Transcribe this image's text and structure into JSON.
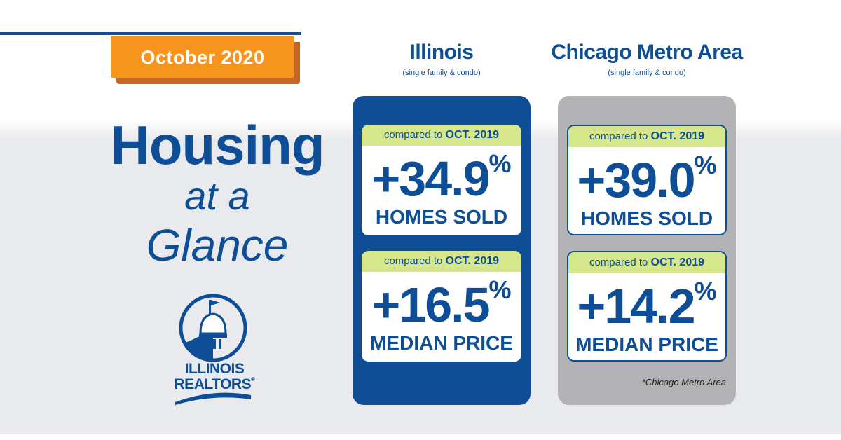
{
  "period": "October 2020",
  "headline": {
    "line1": "Housing",
    "line2": "at a",
    "line3": "Glance"
  },
  "logo": {
    "icon": "capitol-dome-icon",
    "line1": "ILLINOIS",
    "line2": "REALTORS",
    "mark": "®"
  },
  "colors": {
    "blue": "#0e4e96",
    "orange": "#f7941d",
    "green_band": "#d6e68a",
    "grey_panel": "#b3b3b5"
  },
  "regions": [
    {
      "name": "Illinois",
      "sub": "(single family & condo)",
      "stats": [
        {
          "compare_prefix": "compared to",
          "compare_period": "OCT. 2019",
          "value": "+34.9",
          "unit": "%",
          "label": "HOMES SOLD"
        },
        {
          "compare_prefix": "compared to",
          "compare_period": "OCT. 2019",
          "value": "+16.5",
          "unit": "%",
          "label": "MEDIAN PRICE"
        }
      ]
    },
    {
      "name": "Chicago Metro Area",
      "sub": "(single family & condo)",
      "stats": [
        {
          "compare_prefix": "compared to",
          "compare_period": "OCT. 2019",
          "value": "+39.0",
          "unit": "%",
          "label": "HOMES SOLD"
        },
        {
          "compare_prefix": "compared to",
          "compare_period": "OCT. 2019",
          "value": "+14.2",
          "unit": "%",
          "label": "MEDIAN PRICE"
        }
      ],
      "footnote": "*Chicago Metro Area"
    }
  ]
}
